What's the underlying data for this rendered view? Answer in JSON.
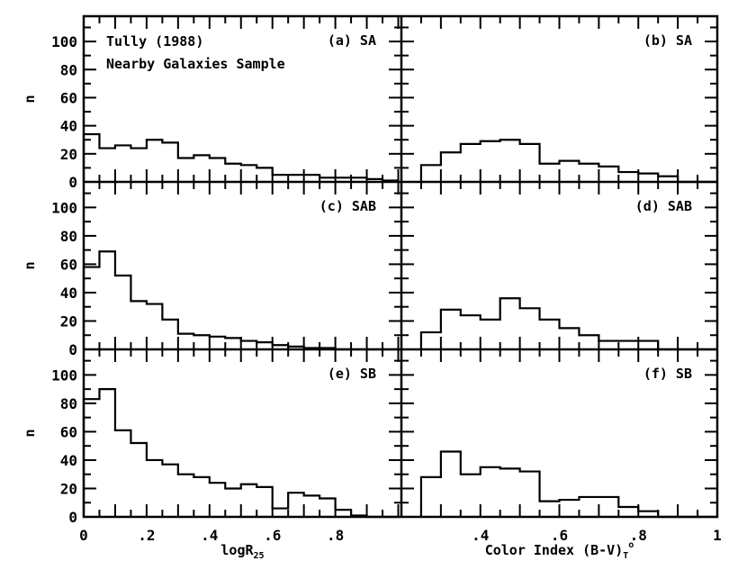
{
  "chart_data": {
    "type": "histogram-grid",
    "annotation": [
      "Tully (1988)",
      "Nearby Galaxies Sample"
    ],
    "ylabel": "n",
    "columns": [
      {
        "xlabel": "logR",
        "xlabel_sub": "25",
        "xlim": [
          0,
          1.01
        ],
        "ticks": [
          {
            "v": 0,
            "t": "0"
          },
          {
            "v": 0.2,
            "t": ".2"
          },
          {
            "v": 0.4,
            "t": ".4"
          },
          {
            "v": 0.6,
            "t": ".6"
          },
          {
            "v": 0.8,
            "t": ".8"
          }
        ]
      },
      {
        "xlabel": "Color Index (B-V)",
        "xlabel_sub": "T",
        "xlabel_sup": "o",
        "xlim": [
          0.2,
          1.0
        ],
        "ticks": [
          {
            "v": 0.4,
            "t": ".4"
          },
          {
            "v": 0.6,
            "t": ".6"
          },
          {
            "v": 0.8,
            "t": ".8"
          },
          {
            "v": 1.0,
            "t": "1"
          }
        ]
      }
    ],
    "yticks": [
      0,
      20,
      40,
      60,
      80,
      100
    ],
    "ylim": [
      0,
      118
    ],
    "panels": [
      {
        "label": "(a) SA",
        "row": 0,
        "col": 0,
        "x0": 0.0,
        "width": 0.05,
        "counts": [
          34,
          24,
          26,
          24,
          30,
          28,
          17,
          19,
          17,
          13,
          12,
          10,
          5,
          5,
          5,
          3,
          3,
          3,
          2,
          1
        ]
      },
      {
        "label": "(b) SA",
        "row": 0,
        "col": 1,
        "x0": 0.25,
        "width": 0.05,
        "counts": [
          12,
          21,
          27,
          29,
          30,
          27,
          13,
          15,
          13,
          11,
          7,
          6,
          4,
          0,
          0
        ]
      },
      {
        "label": "(c) SAB",
        "row": 1,
        "col": 0,
        "x0": 0.0,
        "width": 0.05,
        "counts": [
          58,
          69,
          52,
          34,
          32,
          21,
          11,
          10,
          9,
          8,
          6,
          5,
          3,
          2,
          1,
          1,
          0,
          0,
          0,
          0
        ]
      },
      {
        "label": "(d) SAB",
        "row": 1,
        "col": 1,
        "x0": 0.25,
        "width": 0.05,
        "counts": [
          12,
          28,
          24,
          21,
          36,
          29,
          21,
          15,
          10,
          6,
          6,
          6,
          0,
          0,
          0
        ]
      },
      {
        "label": "(e) SB",
        "row": 2,
        "col": 0,
        "x0": 0.0,
        "width": 0.05,
        "counts": [
          83,
          90,
          61,
          52,
          40,
          37,
          30,
          28,
          24,
          20,
          23,
          21,
          6,
          17,
          15,
          13,
          5,
          1,
          0,
          0
        ]
      },
      {
        "label": "(f) SB",
        "row": 2,
        "col": 1,
        "x0": 0.25,
        "width": 0.05,
        "counts": [
          28,
          46,
          30,
          35,
          34,
          32,
          11,
          12,
          14,
          14,
          7,
          4,
          0,
          0,
          0
        ]
      }
    ]
  }
}
